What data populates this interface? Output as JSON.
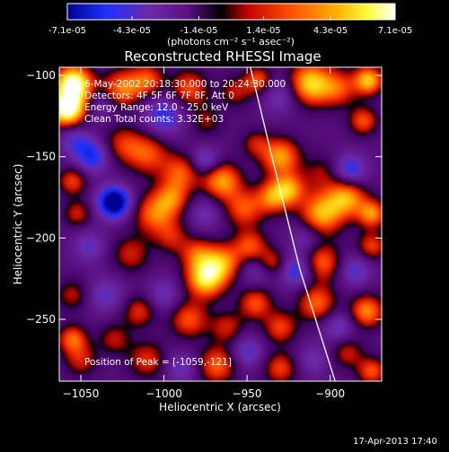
{
  "colorbar": {
    "ticks": [
      "-7.1e-05",
      "-4.3e-05",
      "-1.4e-05",
      "1.4e-05",
      "4.3e-05",
      "7.1e-05"
    ],
    "tick_values": [
      -7.1e-05,
      -4.3e-05,
      -1.4e-05,
      1.4e-05,
      4.3e-05,
      7.1e-05
    ],
    "range": [
      -7.1e-05,
      7.1e-05
    ],
    "unit": "(photons cm⁻² s⁻¹ asec⁻²)"
  },
  "chart_data": {
    "type": "heatmap",
    "title": "Reconstructed RHESSI Image",
    "xlabel": "Heliocentric X (arcsec)",
    "ylabel": "Heliocentric Y (arcsec)",
    "xlim": [
      -1063,
      -869
    ],
    "ylim": [
      -288,
      -95
    ],
    "xticks": [
      -1050,
      -1000,
      -950,
      -900
    ],
    "yticks": [
      -100,
      -150,
      -200,
      -250
    ],
    "xtick_labels": [
      "−1050",
      "−1000",
      "−950",
      "−900"
    ],
    "ytick_labels": [
      "−100",
      "−150",
      "−200",
      "−250"
    ],
    "colormap": "RHESSI blue-purple-red-yellow-white",
    "annotations": [
      "6-May-2002 20:18:30.000 to 20:24:30.000",
      "Detectors: 4F 5F 6F 7F 8F, Att 0",
      "Energy Range: 12.0 - 25.0 keV",
      "Clean     Total counts: 3.32E+03"
    ],
    "peak_label": "Position of Peak = [-1059,-121]",
    "peak_position": [
      -1059,
      -121
    ],
    "limb_curve": [
      [
        -948,
        -95
      ],
      [
        -935,
        -150
      ],
      [
        -918,
        -220
      ],
      [
        -897,
        -288
      ]
    ],
    "features": [
      {
        "x": -1055,
        "y": -104,
        "v": 0.95,
        "s": 7
      },
      {
        "x": -1059,
        "y": -121,
        "v": 1.0,
        "s": 7
      },
      {
        "x": -1052,
        "y": -114,
        "v": 0.6,
        "s": 10
      },
      {
        "x": -1040,
        "y": -118,
        "v": -0.45,
        "s": 7
      },
      {
        "x": -1025,
        "y": -108,
        "v": 0.65,
        "s": 8
      },
      {
        "x": -1010,
        "y": -103,
        "v": 0.55,
        "s": 7
      },
      {
        "x": -1000,
        "y": -125,
        "v": -0.5,
        "s": 9
      },
      {
        "x": -985,
        "y": -108,
        "v": 0.55,
        "s": 8
      },
      {
        "x": -975,
        "y": -128,
        "v": 0.3,
        "s": 7
      },
      {
        "x": -957,
        "y": -110,
        "v": 0.35,
        "s": 7
      },
      {
        "x": -943,
        "y": -103,
        "v": 0.55,
        "s": 6
      },
      {
        "x": -930,
        "y": -112,
        "v": -0.35,
        "s": 8
      },
      {
        "x": -912,
        "y": -105,
        "v": 0.9,
        "s": 9
      },
      {
        "x": -895,
        "y": -108,
        "v": 0.5,
        "s": 8
      },
      {
        "x": -877,
        "y": -103,
        "v": 0.85,
        "s": 6
      },
      {
        "x": -880,
        "y": -128,
        "v": 0.55,
        "s": 6
      },
      {
        "x": -1053,
        "y": -140,
        "v": -0.4,
        "s": 7
      },
      {
        "x": -1043,
        "y": -150,
        "v": -0.55,
        "s": 7
      },
      {
        "x": -1025,
        "y": -142,
        "v": 0.4,
        "s": 8
      },
      {
        "x": -1010,
        "y": -148,
        "v": 0.55,
        "s": 9
      },
      {
        "x": -990,
        "y": -160,
        "v": 0.55,
        "s": 8
      },
      {
        "x": -975,
        "y": -152,
        "v": -0.45,
        "s": 6
      },
      {
        "x": -965,
        "y": -165,
        "v": 0.75,
        "s": 8
      },
      {
        "x": -945,
        "y": -142,
        "v": 0.35,
        "s": 6
      },
      {
        "x": -930,
        "y": -150,
        "v": 0.75,
        "s": 8
      },
      {
        "x": -925,
        "y": -170,
        "v": 0.7,
        "s": 7
      },
      {
        "x": -905,
        "y": -160,
        "v": 0.3,
        "s": 8
      },
      {
        "x": -888,
        "y": -158,
        "v": -0.55,
        "s": 7
      },
      {
        "x": -1055,
        "y": -165,
        "v": 0.5,
        "s": 6
      },
      {
        "x": -1052,
        "y": -185,
        "v": 0.4,
        "s": 6
      },
      {
        "x": -1030,
        "y": -178,
        "v": -1.0,
        "s": 7
      },
      {
        "x": -1005,
        "y": -185,
        "v": 0.65,
        "s": 9
      },
      {
        "x": -995,
        "y": -175,
        "v": 0.5,
        "s": 7
      },
      {
        "x": -975,
        "y": -185,
        "v": -0.3,
        "s": 7
      },
      {
        "x": -952,
        "y": -182,
        "v": 0.55,
        "s": 8
      },
      {
        "x": -935,
        "y": -175,
        "v": 0.6,
        "s": 7
      },
      {
        "x": -905,
        "y": -185,
        "v": 0.8,
        "s": 9
      },
      {
        "x": -890,
        "y": -175,
        "v": 0.75,
        "s": 8
      },
      {
        "x": -875,
        "y": -185,
        "v": 0.7,
        "s": 6
      },
      {
        "x": -915,
        "y": -200,
        "v": -0.3,
        "s": 7
      },
      {
        "x": -1045,
        "y": -205,
        "v": -0.35,
        "s": 7
      },
      {
        "x": -1020,
        "y": -210,
        "v": 0.4,
        "s": 8
      },
      {
        "x": -995,
        "y": -200,
        "v": 0.35,
        "s": 7
      },
      {
        "x": -980,
        "y": -210,
        "v": 0.5,
        "s": 7
      },
      {
        "x": -975,
        "y": -225,
        "v": 0.95,
        "s": 8
      },
      {
        "x": -965,
        "y": -215,
        "v": 0.7,
        "s": 8
      },
      {
        "x": -948,
        "y": -205,
        "v": 0.55,
        "s": 7
      },
      {
        "x": -945,
        "y": -220,
        "v": -0.3,
        "s": 7
      },
      {
        "x": -935,
        "y": -215,
        "v": 0.45,
        "s": 6
      },
      {
        "x": -920,
        "y": -220,
        "v": -0.55,
        "s": 7
      },
      {
        "x": -905,
        "y": -215,
        "v": 0.6,
        "s": 8
      },
      {
        "x": -885,
        "y": -220,
        "v": -0.4,
        "s": 7
      },
      {
        "x": -875,
        "y": -205,
        "v": 0.5,
        "s": 6
      },
      {
        "x": -1055,
        "y": -235,
        "v": 0.35,
        "s": 7
      },
      {
        "x": -1035,
        "y": -235,
        "v": -0.35,
        "s": 8
      },
      {
        "x": -1015,
        "y": -245,
        "v": 0.45,
        "s": 7
      },
      {
        "x": -1000,
        "y": -235,
        "v": -0.35,
        "s": 7
      },
      {
        "x": -985,
        "y": -250,
        "v": 0.55,
        "s": 8
      },
      {
        "x": -962,
        "y": -255,
        "v": 0.4,
        "s": 7
      },
      {
        "x": -945,
        "y": -240,
        "v": 0.55,
        "s": 7
      },
      {
        "x": -930,
        "y": -255,
        "v": 0.5,
        "s": 7
      },
      {
        "x": -908,
        "y": -240,
        "v": 0.6,
        "s": 8
      },
      {
        "x": -895,
        "y": -255,
        "v": -0.4,
        "s": 7
      },
      {
        "x": -878,
        "y": -245,
        "v": 0.7,
        "s": 7
      },
      {
        "x": -1055,
        "y": -262,
        "v": 0.6,
        "s": 6
      },
      {
        "x": -1050,
        "y": -275,
        "v": 0.4,
        "s": 7
      },
      {
        "x": -1030,
        "y": -262,
        "v": 0.35,
        "s": 7
      },
      {
        "x": -1010,
        "y": -275,
        "v": 0.45,
        "s": 8
      },
      {
        "x": -990,
        "y": -280,
        "v": -0.35,
        "s": 7
      },
      {
        "x": -968,
        "y": -278,
        "v": 0.6,
        "s": 8
      },
      {
        "x": -950,
        "y": -270,
        "v": -0.4,
        "s": 7
      },
      {
        "x": -930,
        "y": -280,
        "v": 0.5,
        "s": 7
      },
      {
        "x": -910,
        "y": -275,
        "v": -0.3,
        "s": 7
      },
      {
        "x": -890,
        "y": -270,
        "v": 0.4,
        "s": 7
      },
      {
        "x": -875,
        "y": -282,
        "v": 0.55,
        "s": 6
      }
    ]
  },
  "footer": {
    "timestamp": "17-Apr-2013 17:40"
  }
}
